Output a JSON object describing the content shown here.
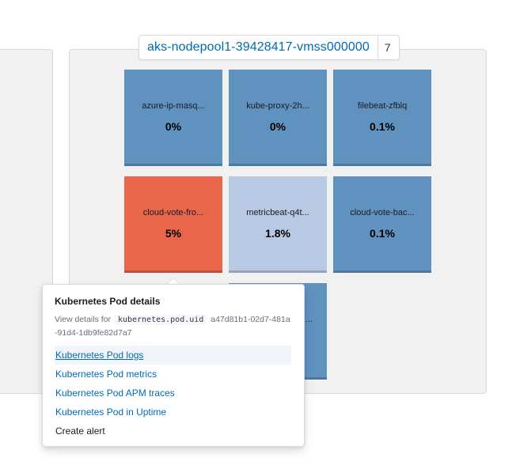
{
  "node": {
    "name": "aks-nodepool1-39428417-vmss000000",
    "count": "7"
  },
  "pods": [
    {
      "name": "azure-ip-masq...",
      "value": "0%",
      "color": "#6092c0"
    },
    {
      "name": "kube-proxy-2h...",
      "value": "0%",
      "color": "#6092c0"
    },
    {
      "name": "filebeat-zfblq",
      "value": "0.1%",
      "color": "#6092c0"
    },
    {
      "name": "cloud-vote-fro...",
      "value": "5%",
      "color": "#e7664c"
    },
    {
      "name": "metricbeat-q4t...",
      "value": "1.8%",
      "color": "#b8c9e3"
    },
    {
      "name": "cloud-vote-bac...",
      "value": "0.1%",
      "color": "#6092c0"
    },
    {
      "name": "...",
      "value": "",
      "color": "#6092c0"
    }
  ],
  "popover": {
    "title": "Kubernetes Pod details",
    "details_prefix": "View details for",
    "details_field": "kubernetes.pod.uid",
    "details_value": "a47d81b1-02d7-481a-91d4-1db9fe82d7a7",
    "links": [
      "Kubernetes Pod logs",
      "Kubernetes Pod metrics",
      "Kubernetes Pod APM traces",
      "Kubernetes Pod in Uptime"
    ],
    "create_alert": "Create alert"
  }
}
